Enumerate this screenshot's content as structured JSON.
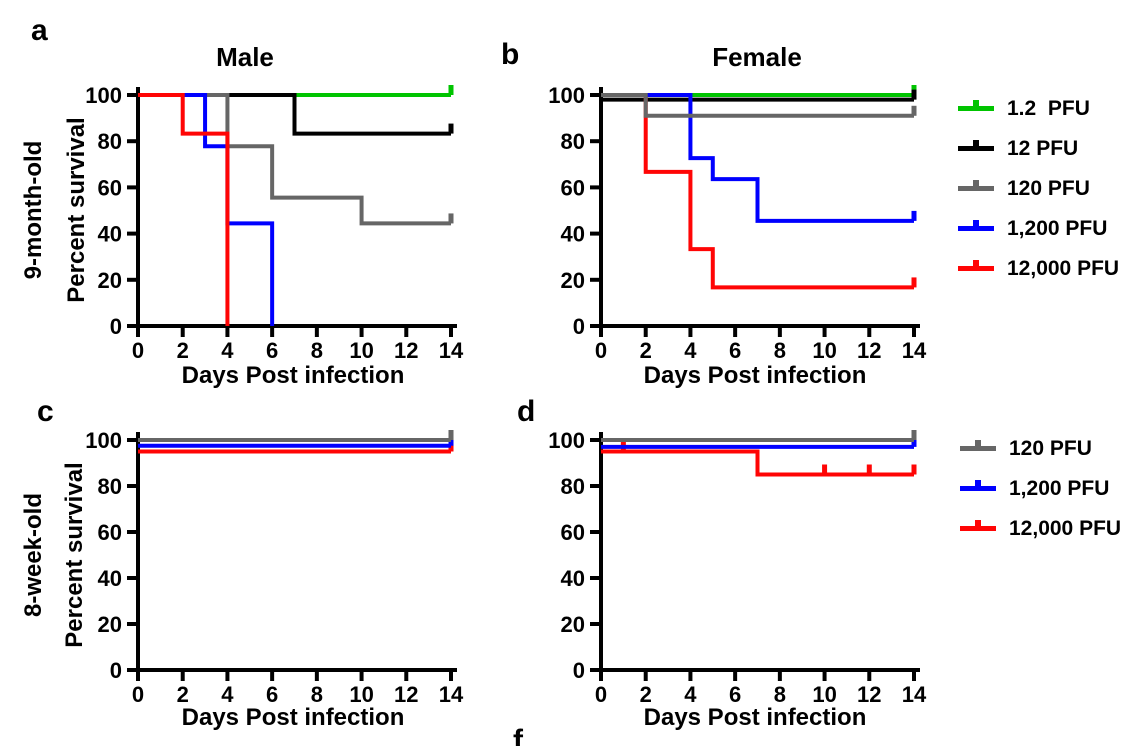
{
  "figure": {
    "background": "#ffffff",
    "panel_a_letter": "a",
    "panel_b_letter": "b",
    "panel_c_letter": "c",
    "panel_d_letter": "d",
    "partial_next_panel_letter": "f",
    "col1_title": "Male",
    "col2_title": "Female",
    "row1_label": "9-month-old",
    "row2_label": "8-week-old",
    "y_axis_label": "Percent survival",
    "x_axis_label": "Days Post infection"
  },
  "palette": {
    "green": "#00c400",
    "black": "#000000",
    "gray": "#666666",
    "blue": "#0000ff",
    "red": "#ff0505",
    "axis": "#000000"
  },
  "axes": {
    "x_ticks": [
      0,
      2,
      4,
      6,
      8,
      10,
      12,
      14
    ],
    "y_ticks": [
      0,
      20,
      40,
      60,
      80,
      100
    ],
    "xlim": [
      0,
      14
    ],
    "ylim": [
      0,
      100
    ]
  },
  "legend_top": {
    "items": [
      {
        "label": "1.2  PFU",
        "color": "green"
      },
      {
        "label": "12 PFU",
        "color": "black"
      },
      {
        "label": "120 PFU",
        "color": "gray"
      },
      {
        "label": "1,200 PFU",
        "color": "blue"
      },
      {
        "label": "12,000 PFU",
        "color": "red"
      }
    ]
  },
  "legend_bottom": {
    "items": [
      {
        "label": "120 PFU",
        "color": "gray"
      },
      {
        "label": "1,200 PFU",
        "color": "blue"
      },
      {
        "label": "12,000 PFU",
        "color": "red"
      }
    ]
  },
  "chart_data": [
    {
      "id": "a",
      "type": "line",
      "subtype": "kaplan-meier-step",
      "title": "Male",
      "row_label": "9-month-old",
      "xlabel": "Days Post infection",
      "ylabel": "Percent survival",
      "xlim": [
        0,
        14
      ],
      "ylim": [
        0,
        100
      ],
      "series": [
        {
          "name": "1.2 PFU",
          "color": "green",
          "points": [
            [
              0,
              100
            ],
            [
              14,
              100
            ]
          ],
          "censors": [
            [
              14,
              100
            ]
          ]
        },
        {
          "name": "12 PFU",
          "color": "black",
          "points": [
            [
              0,
              100
            ],
            [
              7,
              83.3
            ],
            [
              14,
              83.3
            ]
          ],
          "censors": [
            [
              14,
              83.3
            ]
          ]
        },
        {
          "name": "120 PFU",
          "color": "gray",
          "points": [
            [
              0,
              100
            ],
            [
              4,
              77.8
            ],
            [
              6,
              55.6
            ],
            [
              10,
              44.4
            ],
            [
              14,
              44.4
            ]
          ],
          "censors": [
            [
              14,
              44.4
            ]
          ]
        },
        {
          "name": "1,200 PFU",
          "color": "blue",
          "points": [
            [
              0,
              100
            ],
            [
              3,
              77.8
            ],
            [
              4,
              44.4
            ],
            [
              6,
              0
            ]
          ],
          "censors": []
        },
        {
          "name": "12,000 PFU",
          "color": "red",
          "points": [
            [
              0,
              100
            ],
            [
              2,
              83.3
            ],
            [
              4,
              0
            ]
          ],
          "censors": []
        }
      ]
    },
    {
      "id": "b",
      "type": "line",
      "subtype": "kaplan-meier-step",
      "title": "Female",
      "row_label": "9-month-old",
      "xlabel": "Days Post infection",
      "ylabel": "Percent survival",
      "xlim": [
        0,
        14
      ],
      "ylim": [
        0,
        100
      ],
      "series": [
        {
          "name": "1.2 PFU",
          "color": "green",
          "points": [
            [
              0,
              100
            ],
            [
              14,
              100
            ]
          ],
          "censors": [
            [
              14,
              100
            ]
          ]
        },
        {
          "name": "12 PFU",
          "color": "black",
          "points": [
            [
              0,
              98
            ],
            [
              14,
              98
            ]
          ],
          "censors": [
            [
              14,
              98
            ]
          ]
        },
        {
          "name": "12,000 PFU",
          "color": "red",
          "points": [
            [
              0,
              100
            ],
            [
              2,
              66.7
            ],
            [
              4,
              33.3
            ],
            [
              5,
              16.7
            ],
            [
              14,
              16.7
            ]
          ],
          "censors": [
            [
              14,
              16.7
            ]
          ]
        },
        {
          "name": "1,200 PFU",
          "color": "blue",
          "points": [
            [
              0,
              100
            ],
            [
              4,
              72.7
            ],
            [
              5,
              63.6
            ],
            [
              7,
              45.5
            ],
            [
              14,
              45.5
            ]
          ],
          "censors": [
            [
              14,
              45.5
            ]
          ]
        },
        {
          "name": "120 PFU",
          "color": "gray",
          "points": [
            [
              0,
              100
            ],
            [
              2,
              91
            ],
            [
              14,
              91
            ]
          ],
          "censors": [
            [
              14,
              91
            ]
          ]
        }
      ]
    },
    {
      "id": "c",
      "type": "line",
      "subtype": "kaplan-meier-step",
      "title": "",
      "row_label": "8-week-old",
      "xlabel": "Days Post infection",
      "ylabel": "Percent survival",
      "xlim": [
        0,
        14
      ],
      "ylim": [
        0,
        100
      ],
      "series": [
        {
          "name": "12,000 PFU",
          "color": "red",
          "points": [
            [
              0,
              95
            ],
            [
              14,
              95
            ]
          ],
          "censors": [
            [
              14,
              95
            ]
          ]
        },
        {
          "name": "1,200 PFU",
          "color": "blue",
          "points": [
            [
              0,
              97.5
            ],
            [
              14,
              97.5
            ]
          ],
          "censors": [
            [
              14,
              97.5
            ]
          ]
        },
        {
          "name": "120 PFU",
          "color": "gray",
          "points": [
            [
              0,
              100
            ],
            [
              14,
              100
            ]
          ],
          "censors": [
            [
              14,
              100
            ]
          ]
        }
      ]
    },
    {
      "id": "d",
      "type": "line",
      "subtype": "kaplan-meier-step",
      "title": "",
      "row_label": "8-week-old",
      "xlabel": "Days Post infection",
      "ylabel": "Percent survival",
      "xlim": [
        0,
        14
      ],
      "ylim": [
        0,
        100
      ],
      "series": [
        {
          "name": "12,000 PFU",
          "color": "red",
          "points": [
            [
              0,
              95
            ],
            [
              7,
              85
            ],
            [
              14,
              85
            ]
          ],
          "censors": [
            [
              1,
              95
            ],
            [
              10,
              85
            ],
            [
              12,
              85
            ],
            [
              14,
              85
            ]
          ]
        },
        {
          "name": "1,200 PFU",
          "color": "blue",
          "points": [
            [
              0,
              97
            ],
            [
              14,
              97
            ]
          ],
          "censors": [
            [
              14,
              97
            ]
          ]
        },
        {
          "name": "120 PFU",
          "color": "gray",
          "points": [
            [
              0,
              100
            ],
            [
              14,
              100
            ]
          ],
          "censors": [
            [
              14,
              100
            ]
          ]
        }
      ]
    }
  ]
}
